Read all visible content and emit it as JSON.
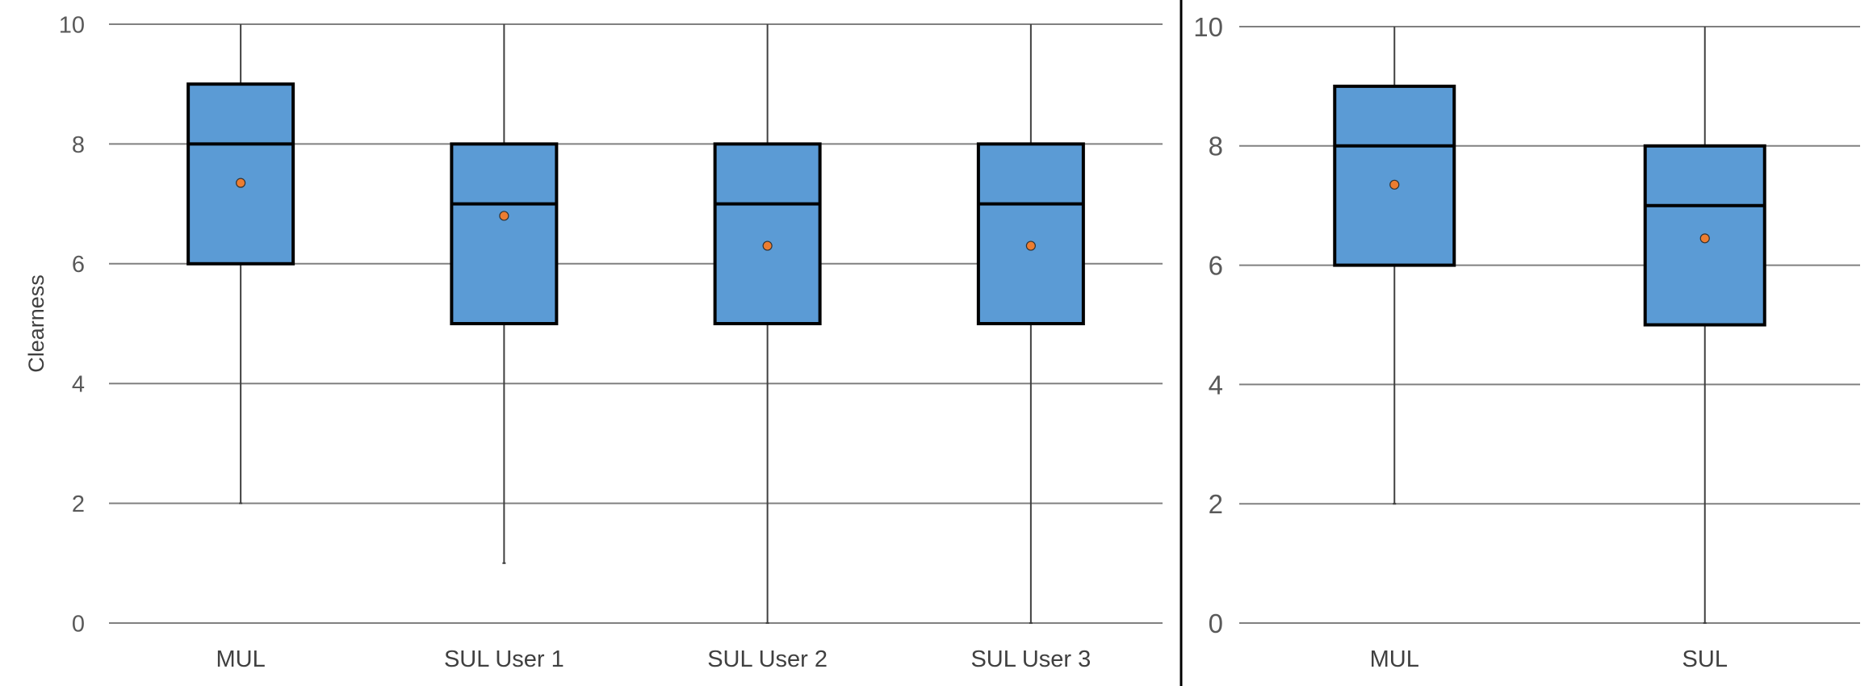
{
  "chart_data": [
    {
      "type": "box",
      "title": "",
      "xlabel": "",
      "ylabel": "Clearness",
      "ylim": [
        0,
        10
      ],
      "yticks": [
        "0",
        "2",
        "4",
        "6",
        "8",
        "10"
      ],
      "grid": true,
      "categories": [
        "MUL",
        "SUL User 1",
        "SUL User 2",
        "SUL User 3"
      ],
      "boxes": [
        {
          "min": 2,
          "q1": 6,
          "median": 8,
          "q3": 9,
          "max": 10,
          "mean": 7.35
        },
        {
          "min": 1,
          "q1": 5,
          "median": 7,
          "q3": 8,
          "max": 10,
          "mean": 6.8
        },
        {
          "min": 0,
          "q1": 5,
          "median": 7,
          "q3": 8,
          "max": 10,
          "mean": 6.3
        },
        {
          "min": 0,
          "q1": 5,
          "median": 7,
          "q3": 8,
          "max": 10,
          "mean": 6.3
        }
      ],
      "colors": {
        "box": "#5b9bd5",
        "mean": "#ed7d31",
        "grid": "#808080"
      }
    },
    {
      "type": "box",
      "title": "",
      "xlabel": "",
      "ylabel": "",
      "ylim": [
        0,
        10
      ],
      "yticks": [
        "0",
        "2",
        "4",
        "6",
        "8",
        "10"
      ],
      "grid": true,
      "categories": [
        "MUL",
        "SUL"
      ],
      "boxes": [
        {
          "min": 2,
          "q1": 6,
          "median": 8,
          "q3": 9,
          "max": 10,
          "mean": 7.35
        },
        {
          "min": 0,
          "q1": 5,
          "median": 7,
          "q3": 8,
          "max": 10,
          "mean": 6.45
        }
      ],
      "colors": {
        "box": "#5b9bd5",
        "mean": "#ed7d31",
        "grid": "#808080"
      }
    }
  ]
}
